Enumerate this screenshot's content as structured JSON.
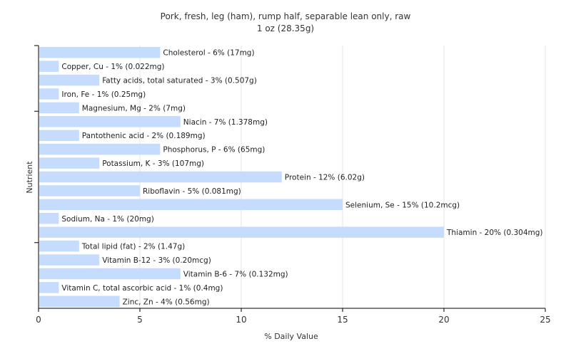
{
  "chart_data": {
    "type": "bar",
    "orientation": "horizontal",
    "title": "Pork, fresh, leg (ham), rump half, separable lean only, raw",
    "subtitle": "1 oz (28.35g)",
    "xlabel": "% Daily Value",
    "ylabel": "Nutrient",
    "xlim": [
      0,
      25
    ],
    "xticks": [
      "0",
      "5",
      "10",
      "15",
      "20",
      "25"
    ],
    "grid": true,
    "bar_color": "#c6dcff",
    "categories": [
      "Cholesterol",
      "Copper, Cu",
      "Fatty acids, total saturated",
      "Iron, Fe",
      "Magnesium, Mg",
      "Niacin",
      "Pantothenic acid",
      "Phosphorus, P",
      "Potassium, K",
      "Protein",
      "Riboflavin",
      "Selenium, Se",
      "Sodium, Na",
      "Thiamin",
      "Total lipid (fat)",
      "Vitamin B-12",
      "Vitamin B-6",
      "Vitamin C, total ascorbic acid",
      "Zinc, Zn"
    ],
    "values": [
      6,
      1,
      3,
      1,
      2,
      7,
      2,
      6,
      3,
      12,
      5,
      15,
      1,
      20,
      2,
      3,
      7,
      1,
      4
    ],
    "labels": [
      "Cholesterol - 6% (17mg)",
      "Copper, Cu - 1% (0.022mg)",
      "Fatty acids, total saturated - 3% (0.507g)",
      "Iron, Fe - 1% (0.25mg)",
      "Magnesium, Mg - 2% (7mg)",
      "Niacin - 7% (1.378mg)",
      "Pantothenic acid - 2% (0.189mg)",
      "Phosphorus, P - 6% (65mg)",
      "Potassium, K - 3% (107mg)",
      "Protein - 12% (6.02g)",
      "Riboflavin - 5% (0.081mg)",
      "Selenium, Se - 15% (10.2mcg)",
      "Sodium, Na - 1% (20mg)",
      "Thiamin - 20% (0.304mg)",
      "Total lipid (fat) - 2% (1.47g)",
      "Vitamin B-12 - 3% (0.20mcg)",
      "Vitamin B-6 - 7% (0.132mg)",
      "Vitamin C, total ascorbic acid - 1% (0.4mg)",
      "Zinc, Zn - 4% (0.56mg)"
    ]
  }
}
